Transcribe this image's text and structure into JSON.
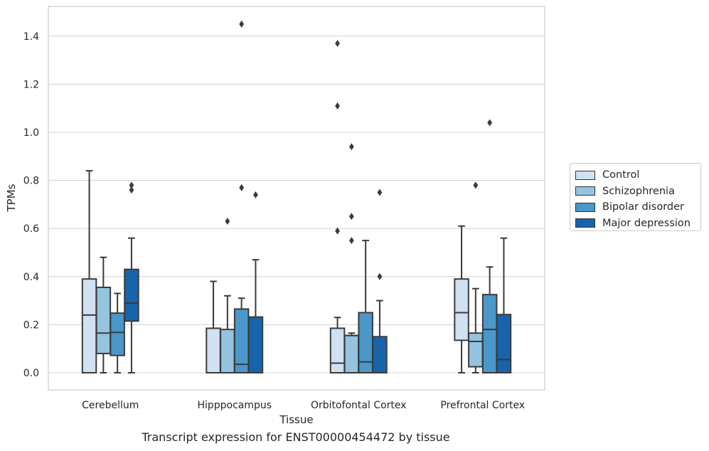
{
  "chart_data": {
    "type": "box",
    "xlabel": "Tissue",
    "ylabel": "TPMs",
    "caption": "Transcript expression for ENST00000454472 by tissue",
    "ylim": [
      -0.07,
      1.53
    ],
    "yticks": [
      "0.0",
      "0.2",
      "0.4",
      "0.6",
      "0.8",
      "1.0",
      "1.2",
      "1.4"
    ],
    "ytick_values": [
      0,
      0.2,
      0.4,
      0.6,
      0.8,
      1.0,
      1.2,
      1.4
    ],
    "grid": true,
    "legend_position": "right",
    "categories": [
      "Cerebellum",
      "Hipppocampus",
      "Orbitofontal Cortex",
      "Prefrontal Cortex"
    ],
    "series": [
      {
        "name": "Control",
        "color": "#d0e1f2",
        "boxes": [
          {
            "whislo": 0.0,
            "q1": 0.0,
            "med": 0.24,
            "q3": 0.39,
            "whishi": 0.84,
            "fliers": []
          },
          {
            "whislo": 0.0,
            "q1": 0.0,
            "med": 0.0,
            "q3": 0.185,
            "whishi": 0.38,
            "fliers": []
          },
          {
            "whislo": 0.0,
            "q1": 0.0,
            "med": 0.04,
            "q3": 0.185,
            "whishi": 0.23,
            "fliers": [
              0.59,
              1.11,
              1.37
            ]
          },
          {
            "whislo": 0.0,
            "q1": 0.135,
            "med": 0.25,
            "q3": 0.39,
            "whishi": 0.61,
            "fliers": []
          }
        ]
      },
      {
        "name": "Schizophrenia",
        "color": "#94c4df",
        "boxes": [
          {
            "whislo": 0.0,
            "q1": 0.08,
            "med": 0.165,
            "q3": 0.355,
            "whishi": 0.48,
            "fliers": []
          },
          {
            "whislo": 0.0,
            "q1": 0.0,
            "med": 0.0,
            "q3": 0.18,
            "whishi": 0.32,
            "fliers": [
              0.63
            ]
          },
          {
            "whislo": 0.0,
            "q1": 0.0,
            "med": 0.155,
            "q3": 0.155,
            "whishi": 0.165,
            "fliers": [
              0.55,
              0.65,
              0.94
            ]
          },
          {
            "whislo": 0.0,
            "q1": 0.025,
            "med": 0.13,
            "q3": 0.165,
            "whishi": 0.35,
            "fliers": [
              0.78
            ]
          }
        ]
      },
      {
        "name": "Bipolar disorder",
        "color": "#4a98c9",
        "boxes": [
          {
            "whislo": 0.0,
            "q1": 0.072,
            "med": 0.168,
            "q3": 0.248,
            "whishi": 0.33,
            "fliers": []
          },
          {
            "whislo": 0.0,
            "q1": 0.0,
            "med": 0.035,
            "q3": 0.265,
            "whishi": 0.31,
            "fliers": [
              0.77,
              1.45
            ]
          },
          {
            "whislo": 0.0,
            "q1": 0.0,
            "med": 0.045,
            "q3": 0.25,
            "whishi": 0.55,
            "fliers": []
          },
          {
            "whislo": 0.0,
            "q1": 0.0,
            "med": 0.18,
            "q3": 0.325,
            "whishi": 0.44,
            "fliers": [
              1.04
            ]
          }
        ]
      },
      {
        "name": "Major depression",
        "color": "#1764ab",
        "boxes": [
          {
            "whislo": 0.0,
            "q1": 0.215,
            "med": 0.29,
            "q3": 0.43,
            "whishi": 0.56,
            "fliers": [
              0.76,
              0.78
            ]
          },
          {
            "whislo": 0.0,
            "q1": 0.0,
            "med": 0.0,
            "q3": 0.232,
            "whishi": 0.47,
            "fliers": [
              0.74
            ]
          },
          {
            "whislo": 0.0,
            "q1": 0.0,
            "med": 0.0,
            "q3": 0.15,
            "whishi": 0.3,
            "fliers": [
              0.4,
              0.75
            ]
          },
          {
            "whislo": 0.0,
            "q1": 0.0,
            "med": 0.055,
            "q3": 0.242,
            "whishi": 0.56,
            "fliers": []
          }
        ]
      }
    ]
  }
}
